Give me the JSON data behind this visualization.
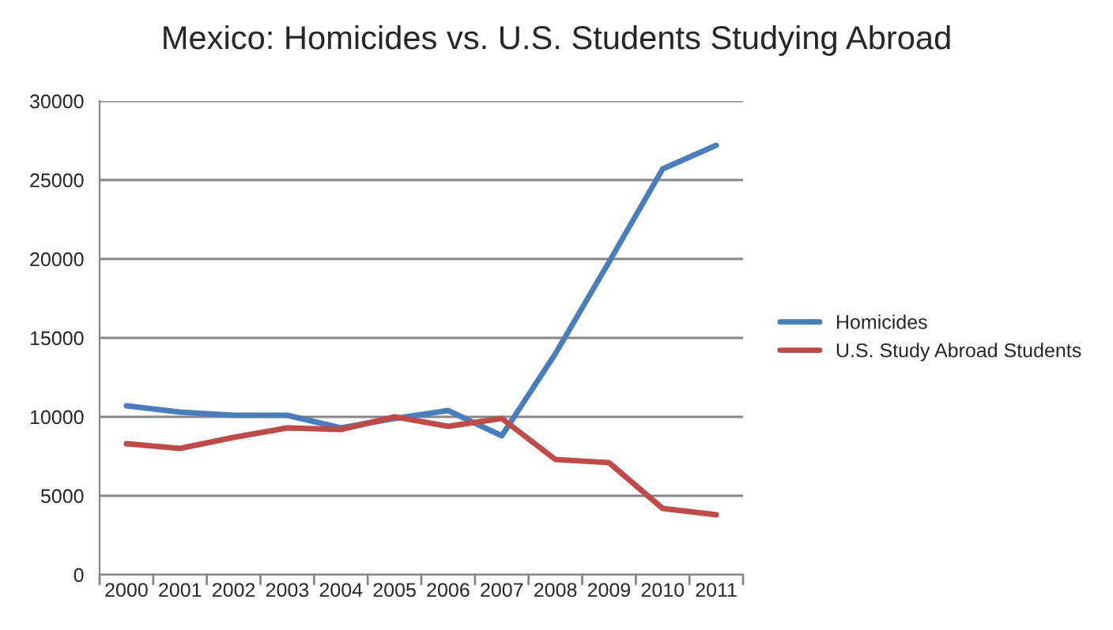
{
  "chart_data": {
    "type": "line",
    "title": "Mexico: Homicides vs. U.S. Students Studying Abroad",
    "categories": [
      "2000",
      "2001",
      "2002",
      "2003",
      "2004",
      "2005",
      "2006",
      "2007",
      "2008",
      "2009",
      "2010",
      "2011"
    ],
    "series": [
      {
        "name": "Homicides",
        "color": "#4a7ebb",
        "values": [
          10700,
          10300,
          10100,
          10100,
          9300,
          9900,
          10400,
          8800,
          14000,
          19800,
          25700,
          27200
        ]
      },
      {
        "name": "U.S. Study Abroad Students",
        "color": "#be4b48",
        "values": [
          8300,
          8000,
          8700,
          9300,
          9200,
          10000,
          9400,
          9900,
          7300,
          7100,
          4200,
          3800
        ]
      }
    ],
    "ylim": [
      0,
      30000
    ],
    "yticks": [
      0,
      5000,
      10000,
      15000,
      20000,
      25000,
      30000
    ],
    "grid": "y",
    "legend": "right",
    "marker": "none",
    "line_style": "solid"
  }
}
